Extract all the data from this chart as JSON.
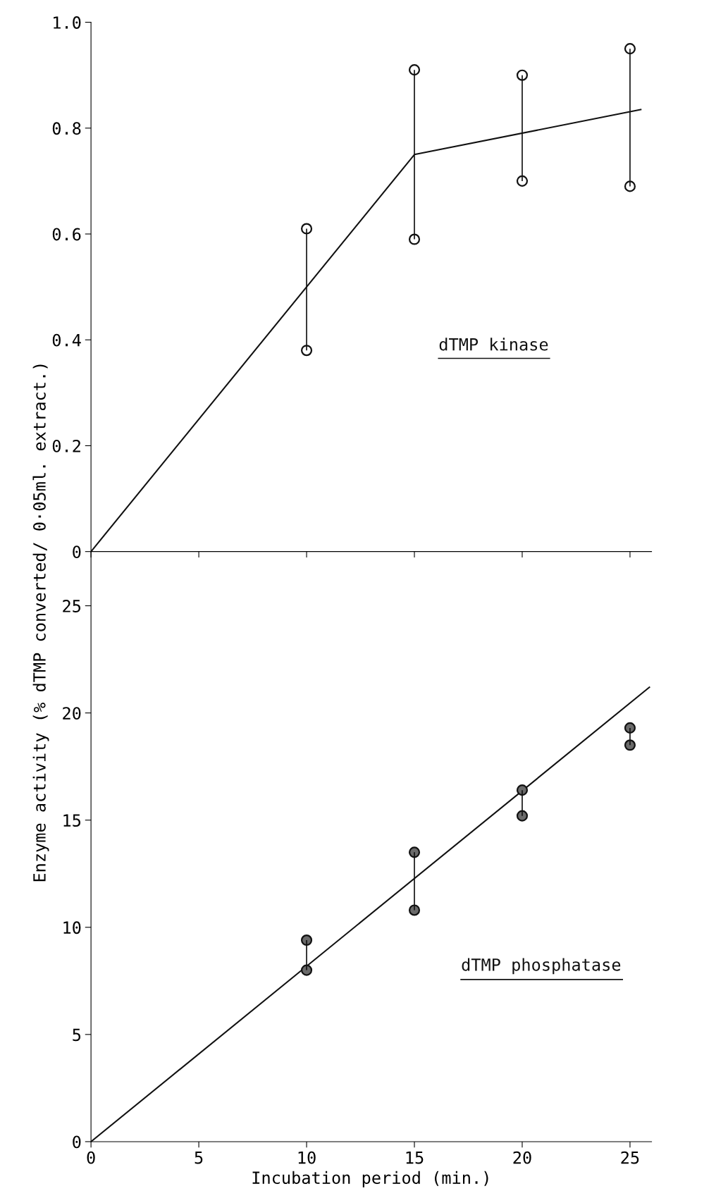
{
  "chart_data": [
    {
      "type": "line",
      "ylabel": "/ 0·05ml. extract.)",
      "xlim": [
        0,
        26
      ],
      "xticks": [
        0,
        5,
        10,
        15,
        20,
        25
      ],
      "ylim": [
        0,
        1.0
      ],
      "yticks": [
        0,
        0.2,
        0.4,
        0.6,
        0.8,
        {
          "value": 1,
          "label": "1.0"
        }
      ],
      "tick_labels": "y",
      "grid": false,
      "legend": false,
      "series": [
        {
          "name": "dTMP kinase",
          "type": "line",
          "color": "#111111",
          "marker": "none",
          "x": [
            0,
            15,
            25.5
          ],
          "values": [
            0,
            0.75,
            0.835
          ]
        },
        {
          "type": "scatter",
          "color": "#111111",
          "marker": "circle",
          "x": [
            10,
            15,
            20,
            25
          ],
          "values": [
            0.61,
            0.91,
            0.9,
            0.95
          ],
          "errors": [
            [
              0.38,
              0.61
            ],
            [
              0.59,
              0.91
            ],
            [
              0.7,
              0.9
            ],
            [
              0.69,
              0.95
            ]
          ]
        },
        {
          "type": "scatter",
          "color": "#111111",
          "marker": "circle",
          "x": [
            10,
            15,
            20,
            25
          ],
          "values": [
            0.38,
            0.59,
            0.7,
            0.69
          ]
        }
      ]
    },
    {
      "type": "line",
      "ylabel": "Enzyme activity (% dTMP converted",
      "xlabel": "Incubation period (min.)",
      "xlim": [
        0,
        26
      ],
      "xticks": [
        0,
        5,
        10,
        15,
        20,
        25
      ],
      "ylim": [
        0,
        27.5
      ],
      "yticks": [
        0,
        5,
        10,
        15,
        20,
        25
      ],
      "grid": false,
      "legend": false,
      "series": [
        {
          "name": "dTMP phosphatase",
          "color": "#111111",
          "marker": "none",
          "x": [
            0,
            25.9
          ],
          "values": [
            0,
            21.2
          ]
        },
        {
          "type": "scatter",
          "color": "#111111",
          "marker": "circle",
          "x": [
            10,
            15,
            20,
            25
          ],
          "values": [
            9.4,
            13.5,
            16.4,
            19.3
          ],
          "errors": [
            [
              8.0,
              9.4
            ],
            [
              10.8,
              13.5
            ],
            [
              15.2,
              16.4
            ],
            [
              18.5,
              19.3
            ]
          ]
        },
        {
          "type": "scatter",
          "color": "#111111",
          "marker": "circle",
          "x": [
            10,
            15,
            20,
            25
          ],
          "values": [
            8.0,
            10.8,
            15.2,
            18.5
          ]
        }
      ]
    }
  ]
}
